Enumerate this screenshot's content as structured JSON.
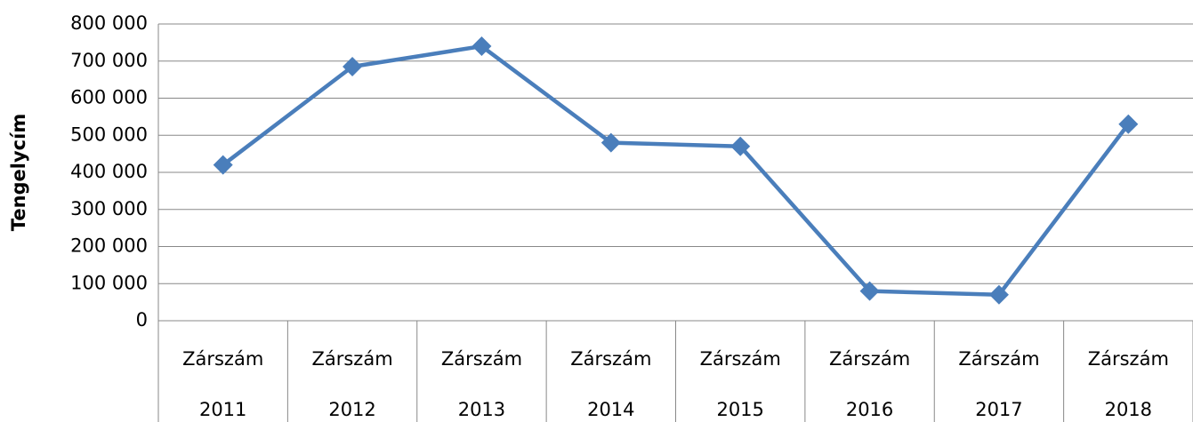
{
  "chart_data": {
    "type": "line",
    "y_label": "Tengelycím",
    "categories": [
      "Zárszám 2011",
      "Zárszám 2012",
      "Zárszám 2013",
      "Zárszám 2014",
      "Zárszám 2015",
      "Zárszám 2016",
      "Zárszám 2017",
      "Zárszám 2018"
    ],
    "series": [
      {
        "name": "Zárszám",
        "color": "#4a7ebb",
        "values": [
          420000,
          685000,
          740000,
          480000,
          470000,
          80000,
          70000,
          530000
        ]
      }
    ],
    "ylim": [
      0,
      800000
    ],
    "yticks": [
      0,
      {
        "value": 100000,
        "label": "100 000"
      },
      {
        "value": 200000,
        "label": "200 000"
      },
      {
        "value": 300000,
        "label": "300 000"
      },
      {
        "value": 400000,
        "label": "400 000"
      },
      {
        "value": 500000,
        "label": "500 000"
      },
      {
        "value": 600000,
        "label": "600 000"
      },
      {
        "value": 700000,
        "label": "700 000"
      },
      {
        "value": 800000,
        "label": "800 000"
      }
    ],
    "grid": true
  }
}
